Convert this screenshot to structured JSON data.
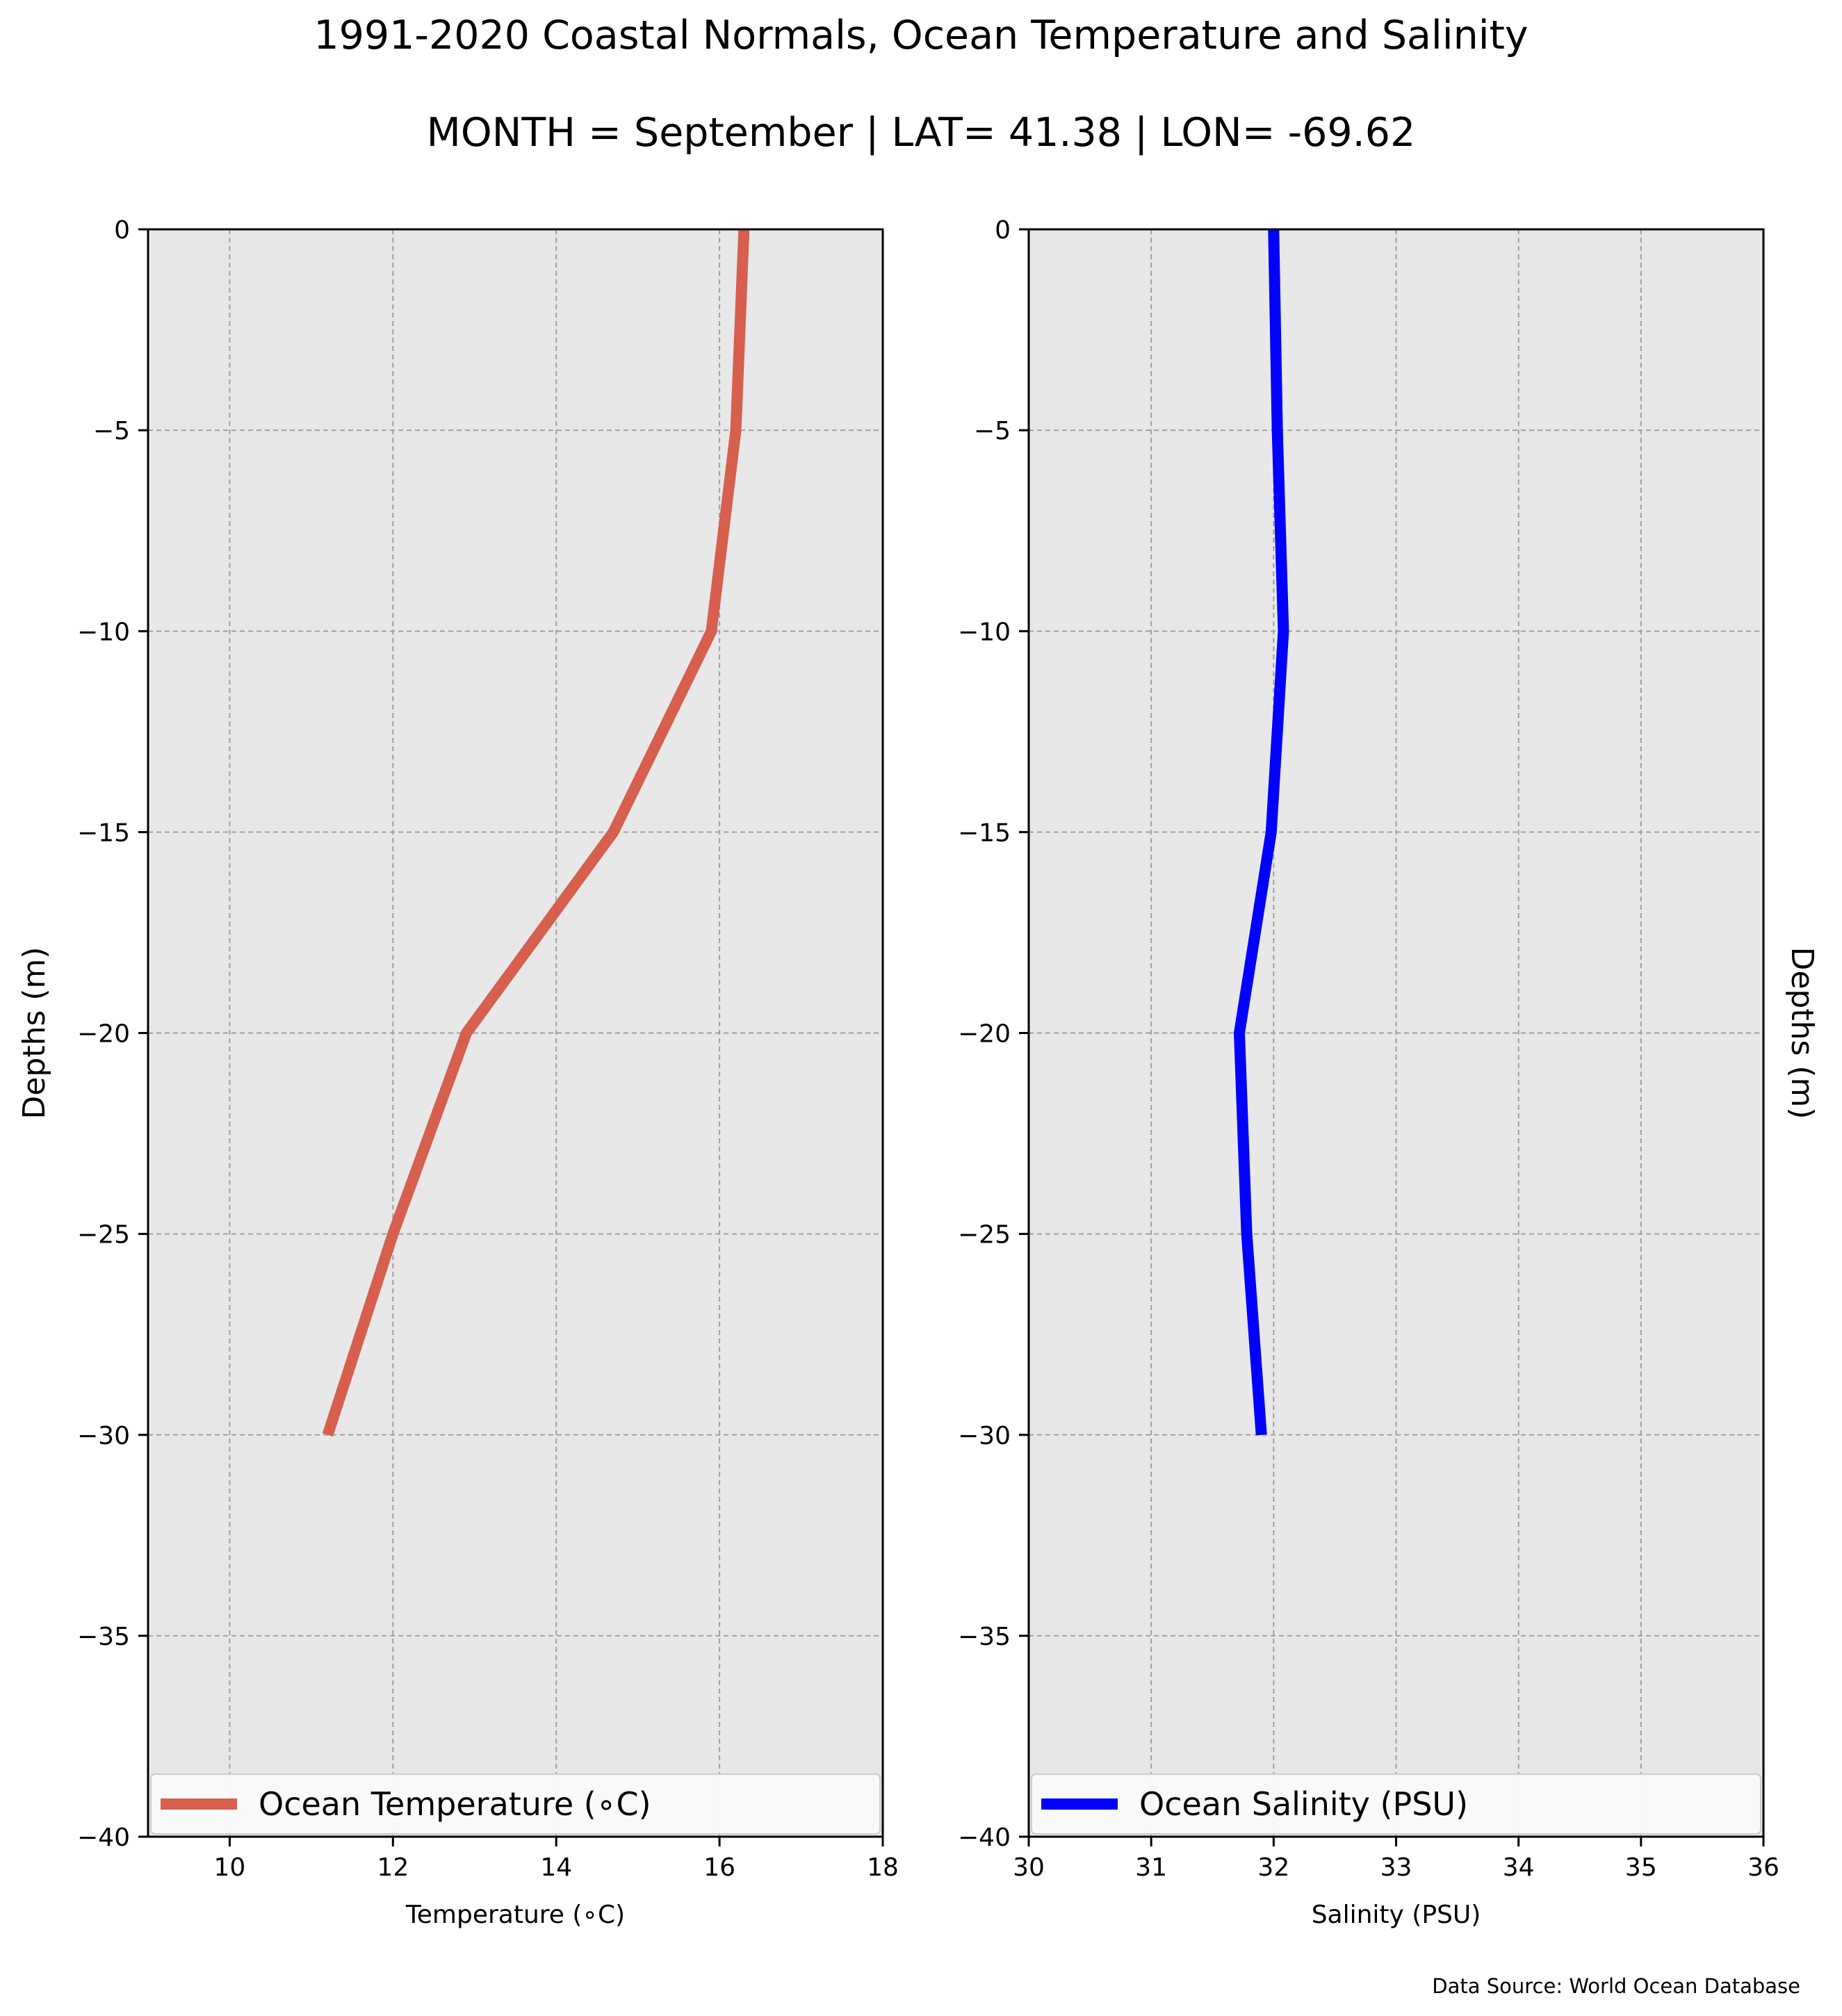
{
  "figure": {
    "title_line1": "1991-2020 Coastal Normals, Ocean Temperature and Salinity",
    "title_line2": "MONTH = September | LAT= 41.38 | LON= -69.62",
    "source": "Data Source: World Ocean Database"
  },
  "colors": {
    "panel_bg": "#e8e8e8",
    "grid": "#a0a0a0",
    "temperature": "#d65f4d",
    "salinity": "#0000ff"
  },
  "chart_data": [
    {
      "type": "line",
      "xlabel": "Temperature (∘C)",
      "ylabel": "Depths (m)",
      "xlim": [
        9,
        18
      ],
      "ylim": [
        -40,
        0
      ],
      "xticks": [
        10,
        12,
        14,
        16,
        18
      ],
      "yticks": [
        0,
        -5,
        -10,
        -15,
        -20,
        -25,
        -30,
        -35,
        -40
      ],
      "grid": true,
      "legend": "bottom",
      "series": [
        {
          "name": "Ocean Temperature (∘C)",
          "color": "#d65f4d",
          "x": [
            16.3,
            16.2,
            15.9,
            14.7,
            12.9,
            12.0,
            11.2
          ],
          "y": [
            0,
            -5,
            -10,
            -15,
            -20,
            -25,
            -30
          ]
        }
      ]
    },
    {
      "type": "line",
      "xlabel": "Salinity (PSU)",
      "ylabel": "Depths (m)",
      "xlim": [
        30,
        36
      ],
      "ylim": [
        -40,
        0
      ],
      "xticks": [
        30,
        31,
        32,
        33,
        34,
        35,
        36
      ],
      "yticks": [
        0,
        -5,
        -10,
        -15,
        -20,
        -25,
        -30,
        -35,
        -40
      ],
      "grid": true,
      "legend": "bottom",
      "series": [
        {
          "name": "Ocean Salinity (PSU)",
          "color": "#0000ff",
          "x": [
            32.0,
            32.03,
            32.08,
            31.98,
            31.72,
            31.78,
            31.9
          ],
          "y": [
            0,
            -5,
            -10,
            -15,
            -20,
            -25,
            -30
          ]
        }
      ]
    }
  ]
}
